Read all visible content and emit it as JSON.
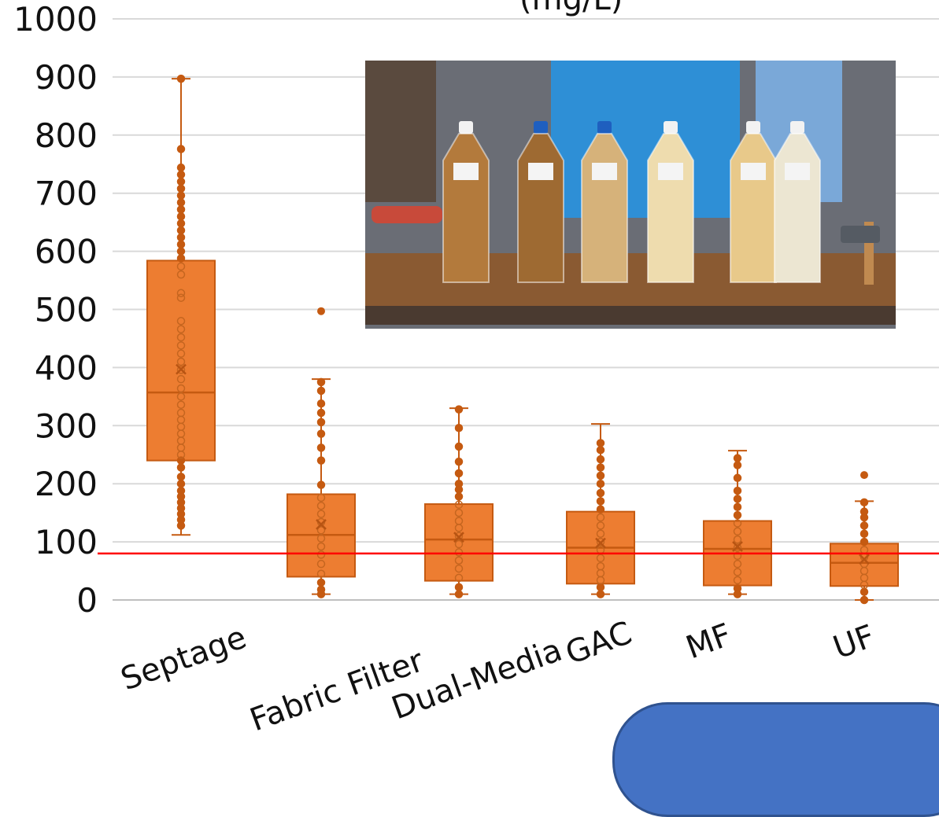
{
  "title_fragment": "(mg/L)",
  "chart_data": {
    "type": "box",
    "ylim": [
      0,
      1000
    ],
    "yticks": [
      0,
      100,
      200,
      300,
      400,
      500,
      600,
      700,
      800,
      900,
      1000
    ],
    "grid": true,
    "box_color": "#ed7d31",
    "box_stroke": "#c55a11",
    "reference_line": {
      "y": 80,
      "color": "#ff0000"
    },
    "categories": [
      "Septage",
      "Fabric Filter",
      "Dual-Media",
      "GAC",
      "MF",
      "UF"
    ],
    "boxes": [
      {
        "whisker_low": 112,
        "q1": 240,
        "median": 357,
        "q3": 584,
        "whisker_high": 897,
        "mean": 397,
        "points": [
          128,
          138,
          148,
          158,
          168,
          178,
          188,
          200,
          212,
          228,
          240,
          250,
          262,
          274,
          286,
          298,
          310,
          322,
          336,
          350,
          364,
          380,
          396,
          410,
          424,
          438,
          452,
          466,
          480,
          520,
          528,
          560,
          574,
          588,
          600,
          612,
          624,
          636,
          648,
          660,
          672,
          684,
          696,
          708,
          720,
          732,
          744,
          776,
          897
        ],
        "outliers": []
      },
      {
        "whisker_low": 10,
        "q1": 40,
        "median": 112,
        "q3": 182,
        "whisker_high": 380,
        "mean": 130,
        "points": [
          10,
          18,
          30,
          45,
          62,
          78,
          92,
          106,
          120,
          134,
          148,
          162,
          176,
          198,
          240,
          262,
          286,
          306,
          322,
          338,
          360,
          375
        ],
        "outliers": [
          497
        ]
      },
      {
        "whisker_low": 10,
        "q1": 33,
        "median": 104,
        "q3": 165,
        "whisker_high": 330,
        "mean": 108,
        "points": [
          10,
          22,
          38,
          54,
          68,
          82,
          96,
          110,
          124,
          136,
          150,
          164,
          178,
          190,
          200,
          218,
          238,
          264,
          296,
          328
        ],
        "outliers": []
      },
      {
        "whisker_low": 10,
        "q1": 28,
        "median": 90,
        "q3": 152,
        "whisker_high": 303,
        "mean": 98,
        "points": [
          10,
          22,
          34,
          46,
          58,
          72,
          86,
          100,
          114,
          128,
          142,
          156,
          170,
          184,
          200,
          214,
          228,
          242,
          258,
          270
        ],
        "outliers": []
      },
      {
        "whisker_low": 10,
        "q1": 25,
        "median": 88,
        "q3": 136,
        "whisker_high": 257,
        "mean": 92,
        "points": [
          10,
          20,
          34,
          48,
          62,
          76,
          90,
          104,
          118,
          132,
          146,
          160,
          174,
          188,
          210,
          232,
          244
        ],
        "outliers": []
      },
      {
        "whisker_low": 0,
        "q1": 24,
        "median": 64,
        "q3": 97,
        "whisker_high": 170,
        "mean": 70,
        "points": [
          0,
          14,
          26,
          38,
          50,
          62,
          74,
          86,
          100,
          114,
          128,
          142,
          152,
          168
        ],
        "outliers": [
          215
        ]
      }
    ]
  },
  "photo": {
    "description_label": "water-sample-bottles-photo",
    "samples": [
      {
        "liquid": "#b37a3c",
        "cap": "#f2f2f2"
      },
      {
        "liquid": "#9e6a32",
        "cap": "#1f5fbf"
      },
      {
        "liquid": "#d6b27a",
        "cap": "#1f5fbf"
      },
      {
        "liquid": "#eedcae",
        "cap": "#f2f2f2"
      },
      {
        "liquid": "#e8c98a",
        "cap": "#f2f2f2"
      },
      {
        "liquid": "#ece6d2",
        "cap": "#f2f2f2"
      }
    ]
  }
}
